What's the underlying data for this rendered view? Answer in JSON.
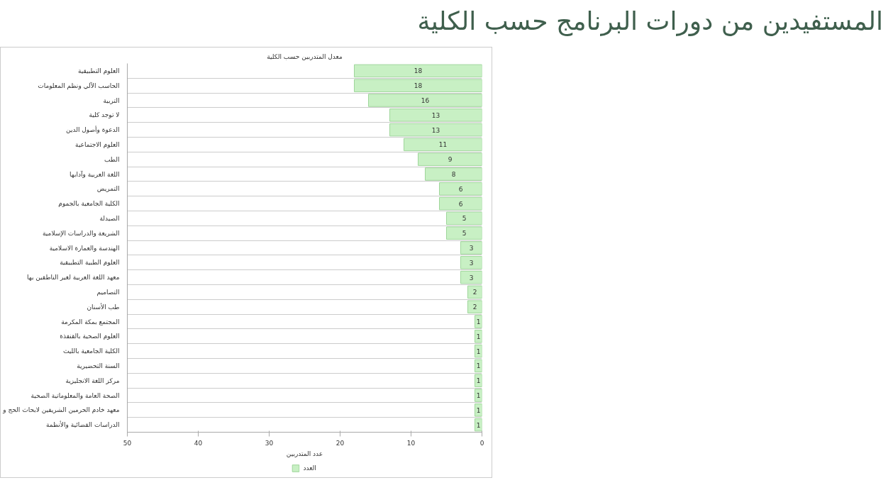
{
  "chart_data": {
    "type": "bar",
    "orientation": "horizontal",
    "title": "المستفيدين من دورات البرنامج حسب الكلية",
    "subtitle": "معدل المتدربين حسب الكلية",
    "xlabel": "عدد المتدربين",
    "categories": [
      "العلوم التطبيقية",
      "الحاسب الآلي ونظم المعلومات",
      "التربية",
      "لا توجد كلية",
      "الدعوة وأصول الدين",
      "العلوم الاجتماعية",
      "الطب",
      "اللغة العربية وآدابها",
      "التمريض",
      "الكلية الجامعية بالجموم",
      "الصيدلة",
      "الشريعة والدراسات الإسلامية",
      "الهندسة والعمارة الاسلامية",
      "العلوم الطبية التطبيقية",
      "معهد اللغة العربية لغير الناطقين بها",
      "التصاميم",
      "طب الأسنان",
      "المجتمع بمكة المكرمة",
      "العلوم الصحية بالقنفذة",
      "الكلية الجامعية بالليث",
      "السنة التحضيرية",
      "مركز اللغة الانجليزية",
      "الصحة العامة والمعلوماتية الصحية",
      "معهد خادم الحرمين الشريفين لابحاث الحج و",
      "الدراسات القضائية والأنظمة"
    ],
    "series": [
      {
        "name": "العدد",
        "color": "#c8f0c4",
        "values": [
          18,
          18,
          16,
          13,
          13,
          11,
          9,
          8,
          6,
          6,
          5,
          5,
          3,
          3,
          3,
          2,
          2,
          1,
          1,
          1,
          1,
          1,
          1,
          1,
          1
        ]
      }
    ],
    "xlim": [
      50,
      0
    ],
    "xticks": [
      50,
      40,
      30,
      20,
      10,
      0
    ],
    "data_labels": true,
    "grid": "y",
    "legend": "bottom"
  }
}
